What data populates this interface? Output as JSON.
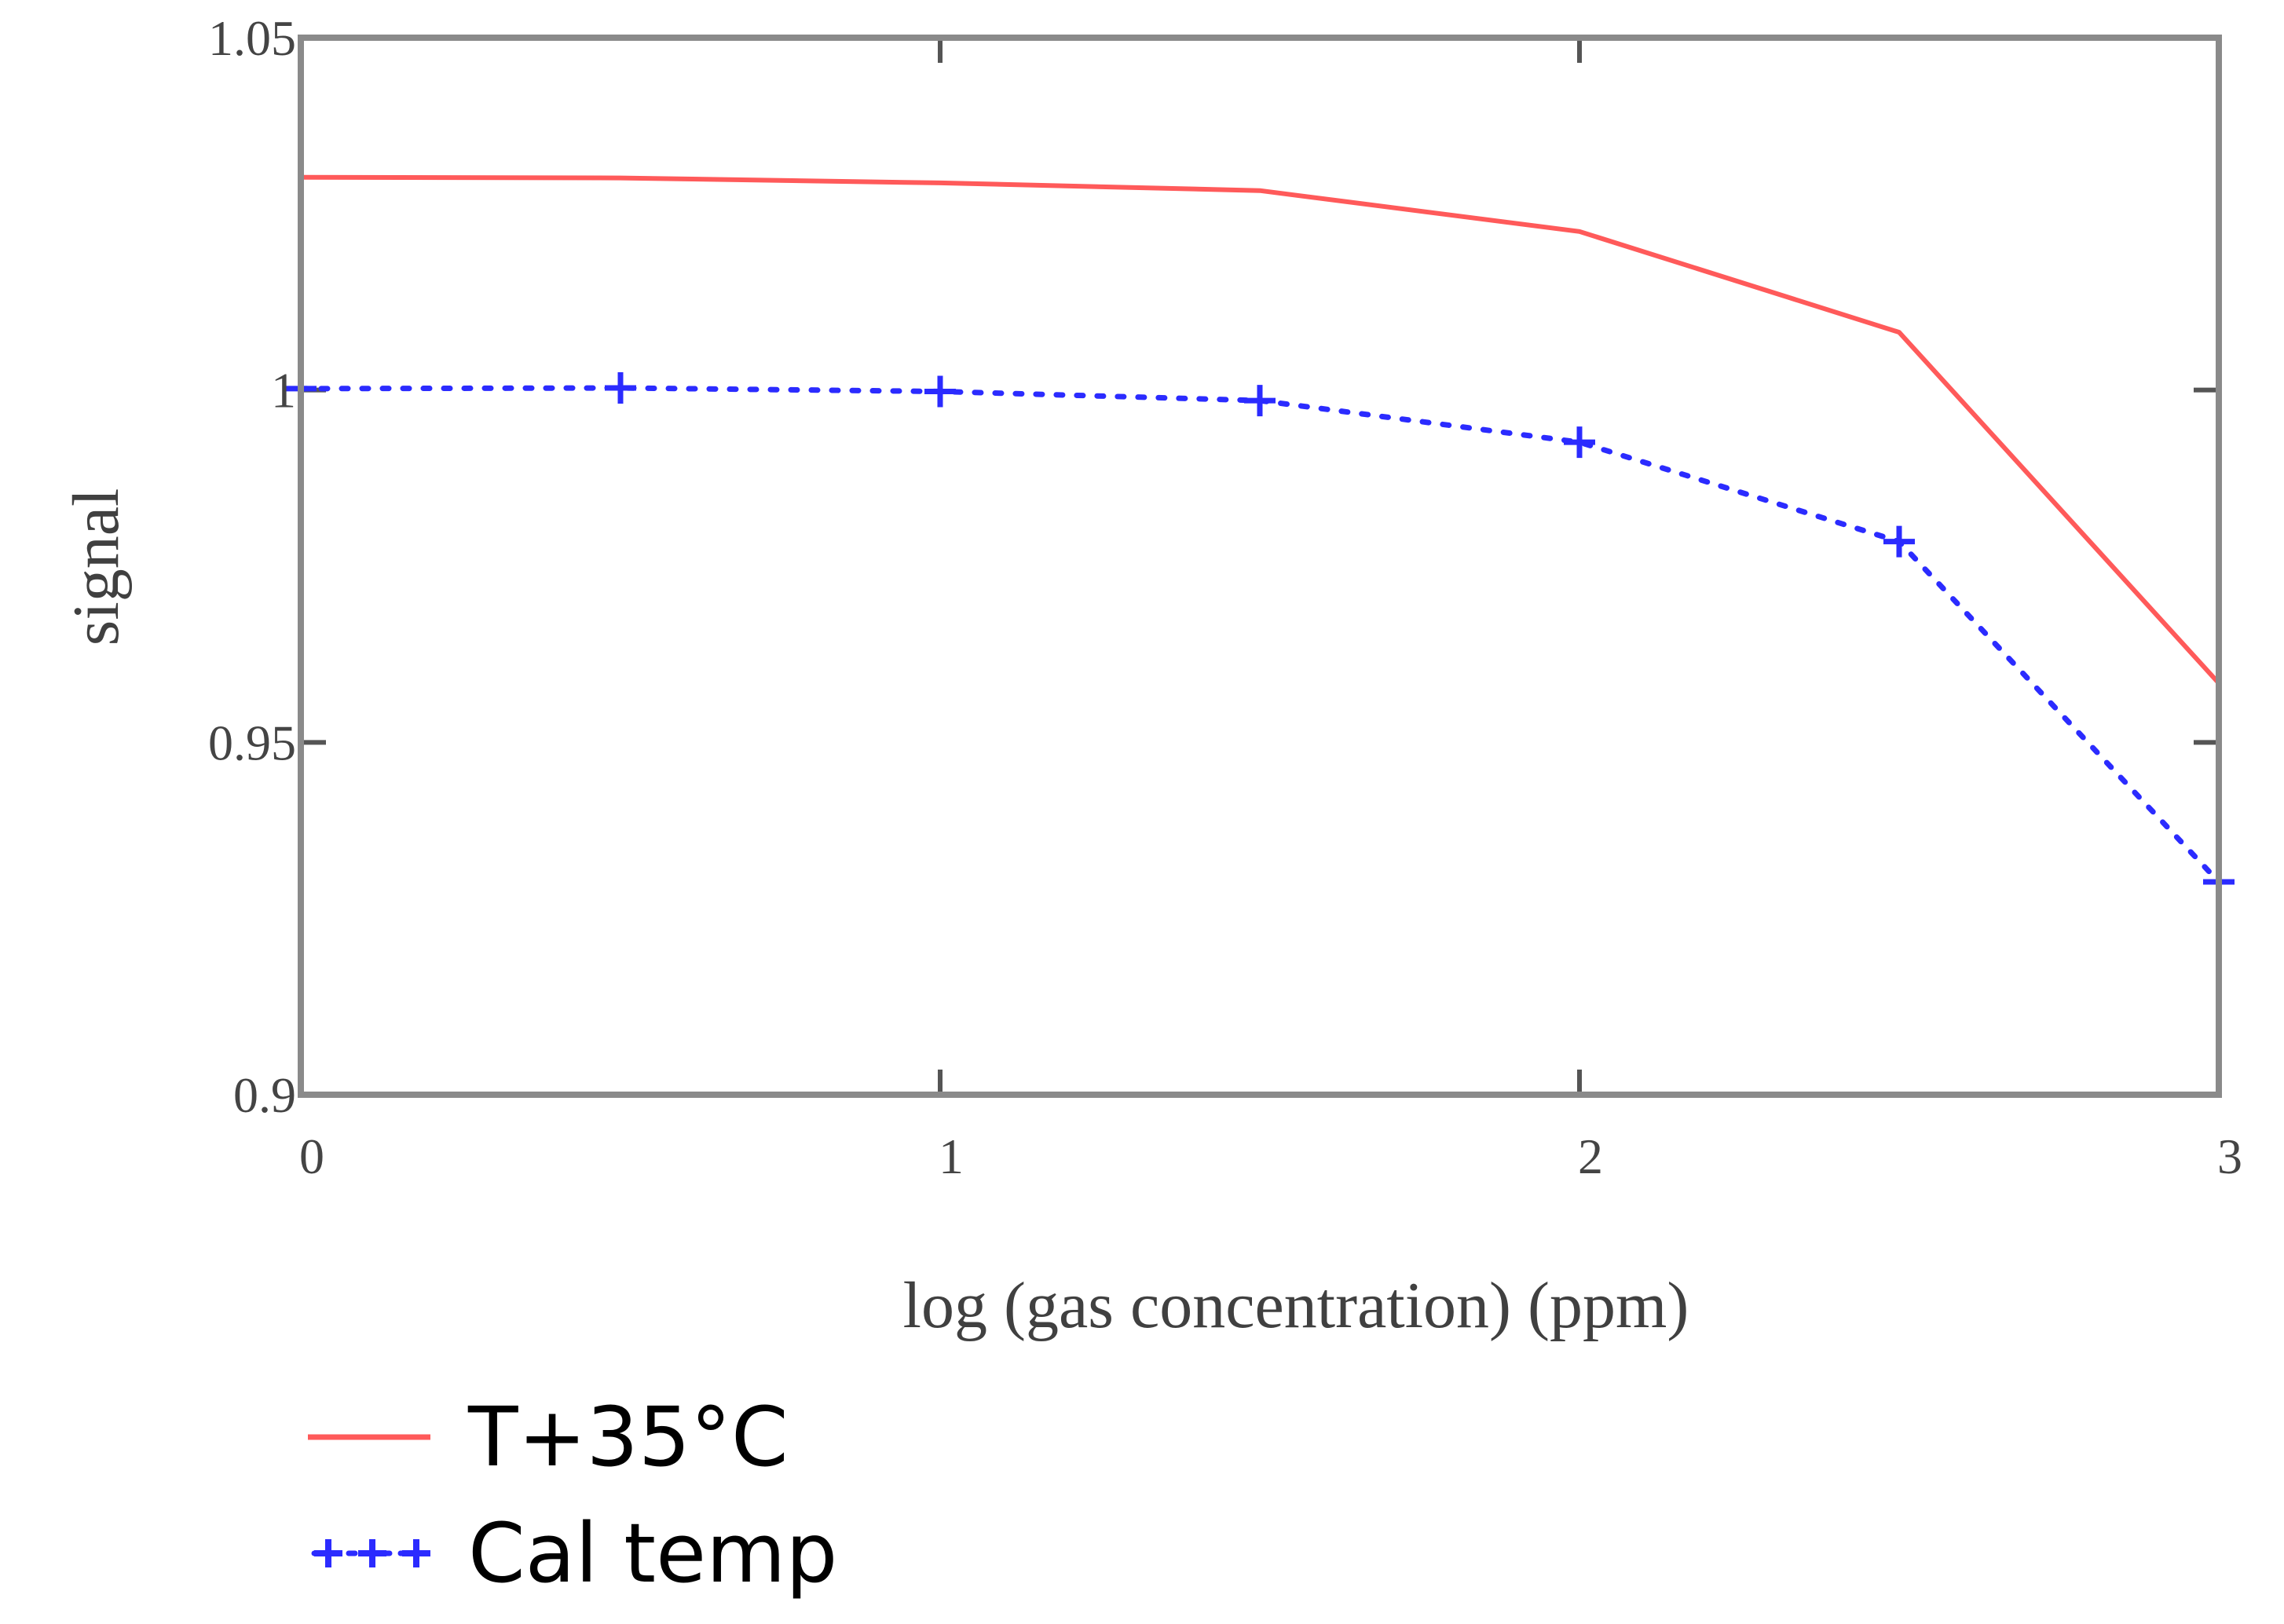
{
  "chart_data": {
    "type": "line",
    "title": "",
    "xlabel": "log (gas concentration) (ppm)",
    "ylabel": "signal",
    "xlim": [
      0,
      3
    ],
    "ylim": [
      0.9,
      1.05
    ],
    "x_ticks": [
      0,
      1,
      2,
      3
    ],
    "x_tick_labels": [
      "0",
      "1",
      "2",
      "3"
    ],
    "y_ticks": [
      0.9,
      0.95,
      1,
      1.05
    ],
    "y_tick_labels": [
      "0.9",
      "0.95",
      "1",
      "1.05"
    ],
    "grid": false,
    "legend_position": "bottom-left",
    "series": [
      {
        "name": "T+35°C",
        "legend_symbol": "—",
        "color": "#ff5a5a",
        "style": "solid",
        "marker": "none",
        "x": [
          0,
          0.5,
          1,
          1.5,
          2,
          2.5,
          3
        ],
        "y": [
          1.0302,
          1.0301,
          1.0294,
          1.0283,
          1.0225,
          1.0082,
          0.9584
        ]
      },
      {
        "name": "Cal temp",
        "legend_symbol": "+++",
        "color": "#2b2bff",
        "style": "dotted",
        "marker": "plus",
        "x": [
          0,
          0.5,
          1,
          1.5,
          2,
          2.5,
          3
        ],
        "y": [
          1.0002,
          1.0003,
          0.9998,
          0.9985,
          0.9926,
          0.9785,
          0.9302
        ]
      }
    ]
  }
}
